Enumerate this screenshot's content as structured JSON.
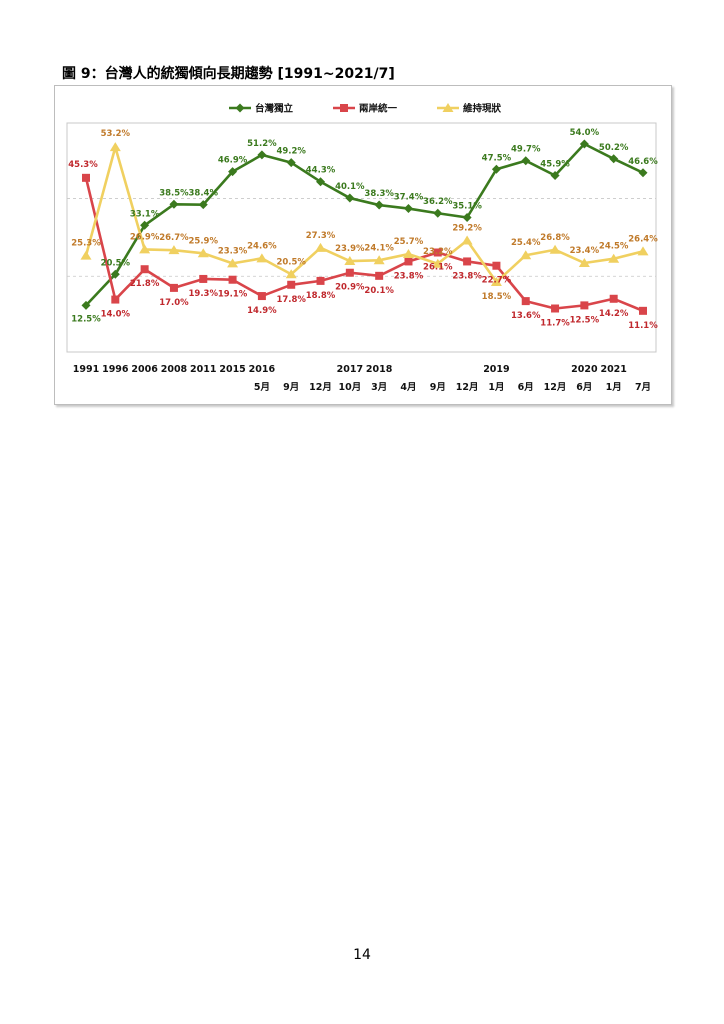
{
  "page_title": "圖 9：台灣人的統獨傾向長期趨勢 [1991~2021/7]",
  "page_number": "14",
  "chart_data": {
    "type": "line",
    "title": "",
    "xlabel": "",
    "ylabel": "",
    "ylim": [
      0,
      60
    ],
    "grid": "dashed horizontal at 20 and 40",
    "legend_position": "top-center",
    "x_year_labels": [
      "1991",
      "1996",
      "2006",
      "2008",
      "2011",
      "2015",
      "2016",
      "",
      "",
      "2017",
      "2018",
      "",
      "",
      "",
      "2019",
      "",
      "",
      "2020",
      "2021",
      ""
    ],
    "x_month_labels": [
      "",
      "",
      "",
      "",
      "",
      "",
      "5月",
      "9月",
      "12月",
      "10月",
      "3月",
      "4月",
      "9月",
      "12月",
      "1月",
      "6月",
      "12月",
      "6月",
      "1月",
      "7月"
    ],
    "series": [
      {
        "name": "台灣獨立",
        "color": "#3b7a1e",
        "values": [
          12.5,
          20.5,
          33.1,
          38.5,
          38.4,
          46.9,
          51.2,
          49.2,
          44.3,
          40.1,
          38.3,
          37.4,
          36.2,
          35.1,
          47.5,
          49.7,
          45.9,
          54.0,
          50.2,
          46.6
        ],
        "labels": [
          "12.5%",
          "20.5%",
          "33.1%",
          "38.5%",
          "38.4%",
          "46.9%",
          "51.2%",
          "49.2%",
          "44.3%",
          "40.1%",
          "38.3%",
          "37.4%",
          "36.2%",
          "35.1%",
          "47.5%",
          "49.7%",
          "45.9%",
          "54.0%",
          "50.2%",
          "46.6%"
        ]
      },
      {
        "name": "兩岸統一",
        "color": "#d9454a",
        "values": [
          45.3,
          14.0,
          21.8,
          17.0,
          19.3,
          19.1,
          14.9,
          17.8,
          18.8,
          20.9,
          20.1,
          23.8,
          26.1,
          23.8,
          22.7,
          13.6,
          11.7,
          12.5,
          14.2,
          11.1
        ],
        "labels": [
          "45.3%",
          "14.0%",
          "21.8%",
          "17.0%",
          "19.3%",
          "19.1%",
          "14.9%",
          "17.8%",
          "18.8%",
          "20.9%",
          "20.1%",
          "23.8%",
          "26.1%",
          "23.8%",
          "22.7%",
          "13.6%",
          "11.7%",
          "12.5%",
          "14.2%",
          "11.1%"
        ]
      },
      {
        "name": "維持現狀",
        "color": "#f0d060",
        "values": [
          25.3,
          53.2,
          26.9,
          26.7,
          25.9,
          23.3,
          24.6,
          20.5,
          27.3,
          23.9,
          24.1,
          25.7,
          23.2,
          29.2,
          18.5,
          25.4,
          26.8,
          23.4,
          24.5,
          26.4
        ],
        "labels": [
          "25.3%",
          "53.2%",
          "26.9%",
          "26.7%",
          "25.9%",
          "23.3%",
          "24.6%",
          "20.5%",
          "27.3%",
          "23.9%",
          "24.1%",
          "25.7%",
          "23.2%",
          "29.2%",
          "18.5%",
          "25.4%",
          "26.8%",
          "23.4%",
          "24.5%",
          "26.4%"
        ]
      }
    ]
  },
  "label_colors": {
    "台灣獨立": "#3b7a1e",
    "兩岸統一": "#c0282d",
    "維持現狀": "#c07a2a"
  }
}
